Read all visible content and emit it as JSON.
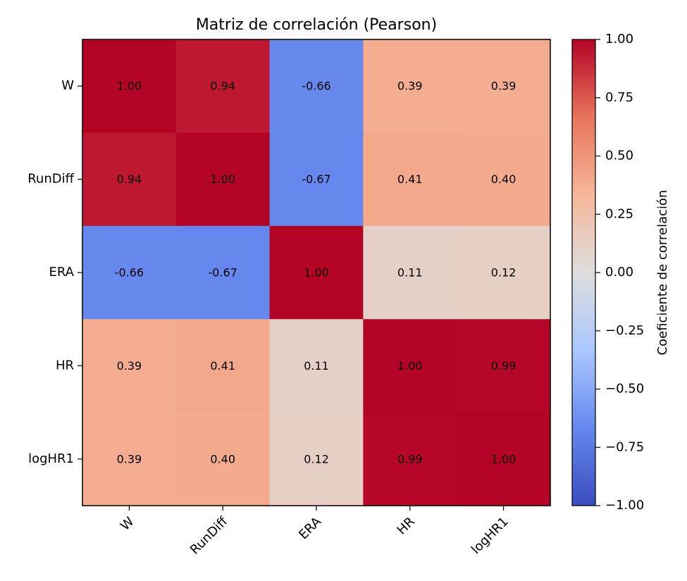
{
  "chart_data": {
    "type": "heatmap",
    "title": "Matriz de correlación (Pearson)",
    "x_labels": [
      "W",
      "RunDiff",
      "ERA",
      "HR",
      "logHR1"
    ],
    "y_labels": [
      "W",
      "RunDiff",
      "ERA",
      "HR",
      "logHR1"
    ],
    "values": [
      [
        1.0,
        0.94,
        -0.66,
        0.39,
        0.39
      ],
      [
        0.94,
        1.0,
        -0.67,
        0.41,
        0.4
      ],
      [
        -0.66,
        -0.67,
        1.0,
        0.11,
        0.12
      ],
      [
        0.39,
        0.41,
        0.11,
        1.0,
        0.99
      ],
      [
        0.39,
        0.4,
        0.12,
        0.99,
        1.0
      ]
    ],
    "value_labels": [
      [
        "1.00",
        "0.94",
        "-0.66",
        "0.39",
        "0.39"
      ],
      [
        "0.94",
        "1.00",
        "-0.67",
        "0.41",
        "0.40"
      ],
      [
        "-0.66",
        "-0.67",
        "1.00",
        "0.11",
        "0.12"
      ],
      [
        "0.39",
        "0.41",
        "0.11",
        "1.00",
        "0.99"
      ],
      [
        "0.39",
        "0.40",
        "0.12",
        "0.99",
        "1.00"
      ]
    ],
    "colormap": "coolwarm",
    "vmin": -1.0,
    "vmax": 1.0,
    "colorbar": {
      "label": "Coeficiente de correlación",
      "ticks": [
        1.0,
        0.75,
        0.5,
        0.25,
        0.0,
        -0.25,
        -0.5,
        -0.75,
        -1.0
      ],
      "tick_labels": [
        "1.00",
        "0.75",
        "0.50",
        "0.25",
        "0.00",
        "−0.25",
        "−0.50",
        "−0.75",
        "−1.00"
      ]
    },
    "colormap_anchors": [
      "#3b4cc0",
      "#6688ee",
      "#aac7fd",
      "#dddddd",
      "#f6b79a",
      "#e7745b",
      "#b40426"
    ]
  }
}
